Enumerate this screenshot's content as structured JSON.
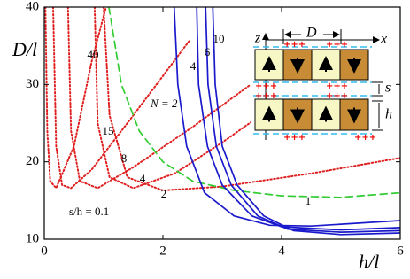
{
  "chart_data": {
    "type": "line",
    "xlabel": "h/l",
    "ylabel": "D/l",
    "xlim": [
      0,
      6
    ],
    "ylim": [
      10,
      40
    ],
    "xticks": [
      0,
      2,
      4,
      6
    ],
    "yticks": [
      10,
      20,
      30,
      40
    ],
    "annotations": [
      "N = 2",
      "s/h = 0.1"
    ],
    "series": [
      {
        "name": "40",
        "color": "#e02020",
        "style": "dotted",
        "x": [
          0.02,
          0.05,
          0.1,
          0.2,
          0.5,
          0.8,
          1.04
        ],
        "values": [
          40,
          24,
          17.5,
          16.6,
          22,
          33,
          40
        ]
      },
      {
        "name": "15",
        "color": "#e02020",
        "style": "dotted",
        "x": [
          0.15,
          0.2,
          0.3,
          0.45,
          0.8,
          1.5,
          2.46
        ],
        "values": [
          40,
          22,
          17,
          16.6,
          19,
          26,
          35.8
        ]
      },
      {
        "name": "8",
        "color": "#e02020",
        "style": "dotted",
        "x": [
          0.4,
          0.45,
          0.6,
          0.9,
          1.5,
          2.5,
          3.48
        ],
        "values": [
          40,
          24,
          17.5,
          16.6,
          19.3,
          24.5,
          30
        ]
      },
      {
        "name": "4",
        "color": "#e02020",
        "style": "dotted",
        "x": [
          0.85,
          0.9,
          1.1,
          1.5,
          2.2,
          3,
          3.48
        ],
        "values": [
          40,
          25,
          18,
          16.6,
          18.5,
          22.5,
          25.1
        ]
      },
      {
        "name": "2",
        "color": "#e02020",
        "style": "dotted",
        "x": [
          1.0,
          1.1,
          1.4,
          2.0,
          3,
          4.5,
          6
        ],
        "values": [
          40,
          26,
          18,
          16.3,
          16.8,
          18.5,
          20.5
        ]
      },
      {
        "name": "1",
        "color": "#33cc33",
        "style": "dashed",
        "x": [
          1.09,
          1.3,
          1.6,
          2,
          2.5,
          3.2,
          4,
          5,
          6
        ],
        "values": [
          40,
          30,
          24,
          20,
          17.5,
          16.3,
          15.6,
          15.4,
          16.0
        ]
      },
      {
        "name": "4",
        "color": "#1a1acc",
        "style": "solid",
        "x": [
          2.57,
          2.6,
          2.75,
          3,
          3.5,
          4,
          5,
          6
        ],
        "values": [
          40,
          30,
          22,
          17,
          13,
          11.6,
          11.2,
          11.5
        ]
      },
      {
        "name": "6",
        "color": "#1a1acc",
        "style": "solid",
        "x": [
          2.72,
          2.76,
          2.9,
          3.15,
          3.6,
          4.1,
          5,
          6
        ],
        "values": [
          40,
          30,
          22,
          17,
          13,
          11.3,
          10.9,
          11.1
        ]
      },
      {
        "name": "10",
        "color": "#1a1acc",
        "style": "solid",
        "x": [
          2.84,
          2.88,
          3.0,
          3.25,
          3.7,
          4.2,
          5,
          6
        ],
        "values": [
          40,
          30,
          22,
          17,
          13,
          11.1,
          10.6,
          10.8
        ]
      },
      {
        "name": "2",
        "color": "#1a1acc",
        "style": "solid",
        "x": [
          2.19,
          2.25,
          2.4,
          2.7,
          3.2,
          3.8,
          4.5,
          6
        ],
        "values": [
          40,
          30,
          22,
          16,
          13,
          11.8,
          11.7,
          12.4
        ]
      }
    ]
  },
  "inset": {
    "z": "z",
    "x": "x",
    "D": "D",
    "s": "s",
    "h": "h",
    "charge": "+++"
  }
}
